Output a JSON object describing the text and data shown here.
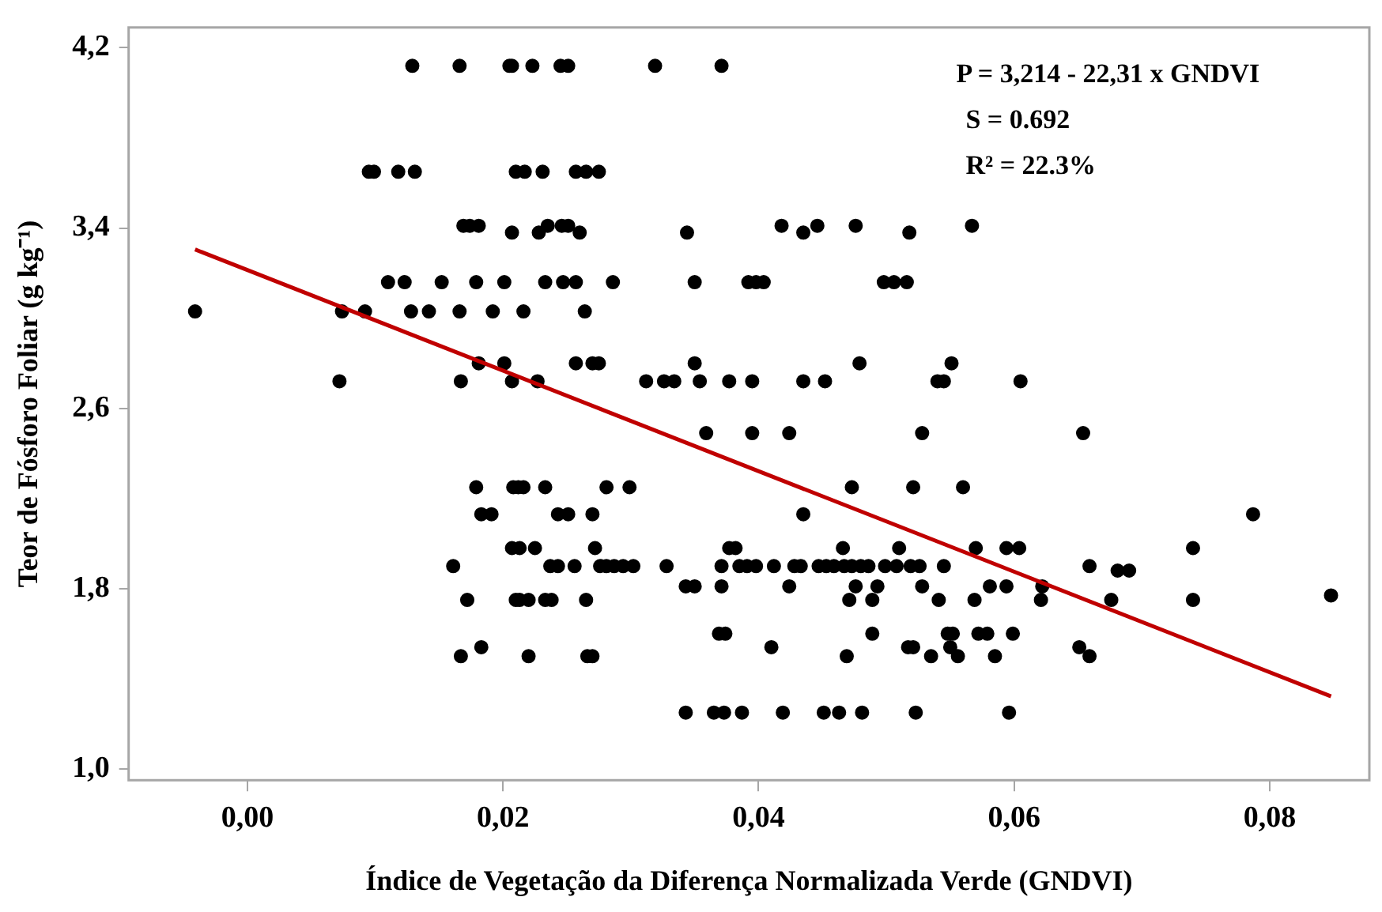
{
  "chart_data": {
    "type": "scatter",
    "xlabel": "Índice de Vegetação da Diferença Normalizada Verde (GNDVI)",
    "ylabel": "Teor de Fósforo Foliar (g kg⁻¹)",
    "xlim": [
      -0.0093,
      0.0878
    ],
    "ylim": [
      0.95,
      4.29
    ],
    "xticks": [
      {
        "value": 0,
        "label": "0,00"
      },
      {
        "value": 0.02,
        "label": "0,02"
      },
      {
        "value": 0.04,
        "label": "0,04"
      },
      {
        "value": 0.06,
        "label": "0,06"
      },
      {
        "value": 0.08,
        "label": "0,08"
      }
    ],
    "yticks": [
      {
        "value": 1,
        "label": "1,0"
      },
      {
        "value": 1.8,
        "label": "1,8"
      },
      {
        "value": 2.6,
        "label": "2,6"
      },
      {
        "value": 3.4,
        "label": "3,4"
      },
      {
        "value": 4.2,
        "label": "4,2"
      }
    ],
    "grid": false,
    "legend": false,
    "marker": "circle",
    "annotations": [
      "P = 3,214 - 22,31 x GNDVI",
      "S = 0.692",
      "R² = 22.3%"
    ],
    "series": [
      {
        "color": "#000000",
        "x": [
          0.0129,
          0.0166,
          0.0205,
          0.0207,
          0.0223,
          0.0245,
          0.0251,
          0.0319,
          0.0371,
          0.0095,
          0.0099,
          0.0118,
          0.0131,
          0.021,
          0.0217,
          0.0231,
          0.0257,
          0.0265,
          0.0275,
          0.0169,
          0.0174,
          0.0181,
          0.0235,
          0.0246,
          0.0251,
          0.0418,
          0.0446,
          0.0476,
          0.0567,
          0.0207,
          0.0228,
          0.026,
          0.0344,
          0.0435,
          0.0518,
          0.011,
          0.0123,
          0.0152,
          0.0179,
          0.0201,
          0.0233,
          0.0247,
          0.0257,
          0.0286,
          0.035,
          0.0392,
          0.0398,
          0.0404,
          0.0498,
          0.0506,
          0.0516,
          -0.0041,
          0.0074,
          0.0092,
          0.0128,
          0.0142,
          0.0166,
          0.0192,
          0.0216,
          0.0264,
          0.0181,
          0.0201,
          0.0257,
          0.027,
          0.0275,
          0.035,
          0.0479,
          0.0551,
          0.0072,
          0.0167,
          0.0207,
          0.0227,
          0.0312,
          0.0326,
          0.0334,
          0.0354,
          0.0377,
          0.0395,
          0.0435,
          0.0452,
          0.054,
          0.0545,
          0.0605,
          0.0359,
          0.0395,
          0.0424,
          0.0528,
          0.0654,
          0.0179,
          0.0208,
          0.0212,
          0.0216,
          0.0233,
          0.0281,
          0.0299,
          0.0473,
          0.0521,
          0.056,
          0.0183,
          0.0191,
          0.0243,
          0.0251,
          0.027,
          0.0435,
          0.0787,
          0.0207,
          0.0213,
          0.0225,
          0.0272,
          0.0377,
          0.0382,
          0.0466,
          0.051,
          0.057,
          0.0594,
          0.0604,
          0.074,
          0.0161,
          0.0237,
          0.0243,
          0.0256,
          0.0276,
          0.0281,
          0.0287,
          0.0294,
          0.0302,
          0.0328,
          0.0371,
          0.0385,
          0.0391,
          0.0398,
          0.0412,
          0.0428,
          0.0433,
          0.0447,
          0.0453,
          0.0459,
          0.0467,
          0.0473,
          0.048,
          0.0486,
          0.0499,
          0.0508,
          0.0519,
          0.0526,
          0.0545,
          0.0659,
          0.0681,
          0.069,
          0.0343,
          0.035,
          0.0371,
          0.0424,
          0.0476,
          0.0493,
          0.0528,
          0.0581,
          0.0594,
          0.0622,
          0.0848,
          0.0172,
          0.021,
          0.0213,
          0.022,
          0.0233,
          0.0238,
          0.0265,
          0.0471,
          0.0489,
          0.0541,
          0.0569,
          0.0621,
          0.0676,
          0.074,
          0.0369,
          0.0374,
          0.0489,
          0.0548,
          0.0552,
          0.0572,
          0.0579,
          0.0599,
          0.0183,
          0.041,
          0.0517,
          0.0521,
          0.055,
          0.0651,
          0.0167,
          0.022,
          0.0266,
          0.027,
          0.0469,
          0.0535,
          0.0556,
          0.0585,
          0.0659,
          0.0343,
          0.0365,
          0.0373,
          0.0387,
          0.0419,
          0.0451,
          0.0463,
          0.0481,
          0.0523,
          0.0596
        ],
        "values": [
          4.12,
          4.12,
          4.12,
          4.12,
          4.12,
          4.12,
          4.12,
          4.12,
          4.12,
          3.65,
          3.65,
          3.65,
          3.65,
          3.65,
          3.65,
          3.65,
          3.65,
          3.65,
          3.65,
          3.41,
          3.41,
          3.41,
          3.41,
          3.41,
          3.41,
          3.41,
          3.41,
          3.41,
          3.41,
          3.38,
          3.38,
          3.38,
          3.38,
          3.38,
          3.38,
          3.16,
          3.16,
          3.16,
          3.16,
          3.16,
          3.16,
          3.16,
          3.16,
          3.16,
          3.16,
          3.16,
          3.16,
          3.16,
          3.16,
          3.16,
          3.16,
          3.03,
          3.03,
          3.03,
          3.03,
          3.03,
          3.03,
          3.03,
          3.03,
          3.03,
          2.8,
          2.8,
          2.8,
          2.8,
          2.8,
          2.8,
          2.8,
          2.8,
          2.72,
          2.72,
          2.72,
          2.72,
          2.72,
          2.72,
          2.72,
          2.72,
          2.72,
          2.72,
          2.72,
          2.72,
          2.72,
          2.72,
          2.72,
          2.49,
          2.49,
          2.49,
          2.49,
          2.49,
          2.25,
          2.25,
          2.25,
          2.25,
          2.25,
          2.25,
          2.25,
          2.25,
          2.25,
          2.25,
          2.13,
          2.13,
          2.13,
          2.13,
          2.13,
          2.13,
          2.13,
          1.98,
          1.98,
          1.98,
          1.98,
          1.98,
          1.98,
          1.98,
          1.98,
          1.98,
          1.98,
          1.98,
          1.98,
          1.9,
          1.9,
          1.9,
          1.9,
          1.9,
          1.9,
          1.9,
          1.9,
          1.9,
          1.9,
          1.9,
          1.9,
          1.9,
          1.9,
          1.9,
          1.9,
          1.9,
          1.9,
          1.9,
          1.9,
          1.9,
          1.9,
          1.9,
          1.9,
          1.9,
          1.9,
          1.9,
          1.9,
          1.9,
          1.9,
          1.88,
          1.88,
          1.81,
          1.81,
          1.81,
          1.81,
          1.81,
          1.81,
          1.81,
          1.81,
          1.81,
          1.81,
          1.77,
          1.75,
          1.75,
          1.75,
          1.75,
          1.75,
          1.75,
          1.75,
          1.75,
          1.75,
          1.75,
          1.75,
          1.75,
          1.75,
          1.75,
          1.6,
          1.6,
          1.6,
          1.6,
          1.6,
          1.6,
          1.6,
          1.6,
          1.54,
          1.54,
          1.54,
          1.54,
          1.54,
          1.54,
          1.5,
          1.5,
          1.5,
          1.5,
          1.5,
          1.5,
          1.5,
          1.5,
          1.5,
          1.25,
          1.25,
          1.25,
          1.25,
          1.25,
          1.25,
          1.25,
          1.25,
          1.25,
          1.25
        ]
      },
      {
        "type": "line",
        "color": "#c00000",
        "marker": "none",
        "x": [
          -0.0041,
          0.0848
        ],
        "values": [
          3.305,
          1.322
        ]
      }
    ]
  }
}
